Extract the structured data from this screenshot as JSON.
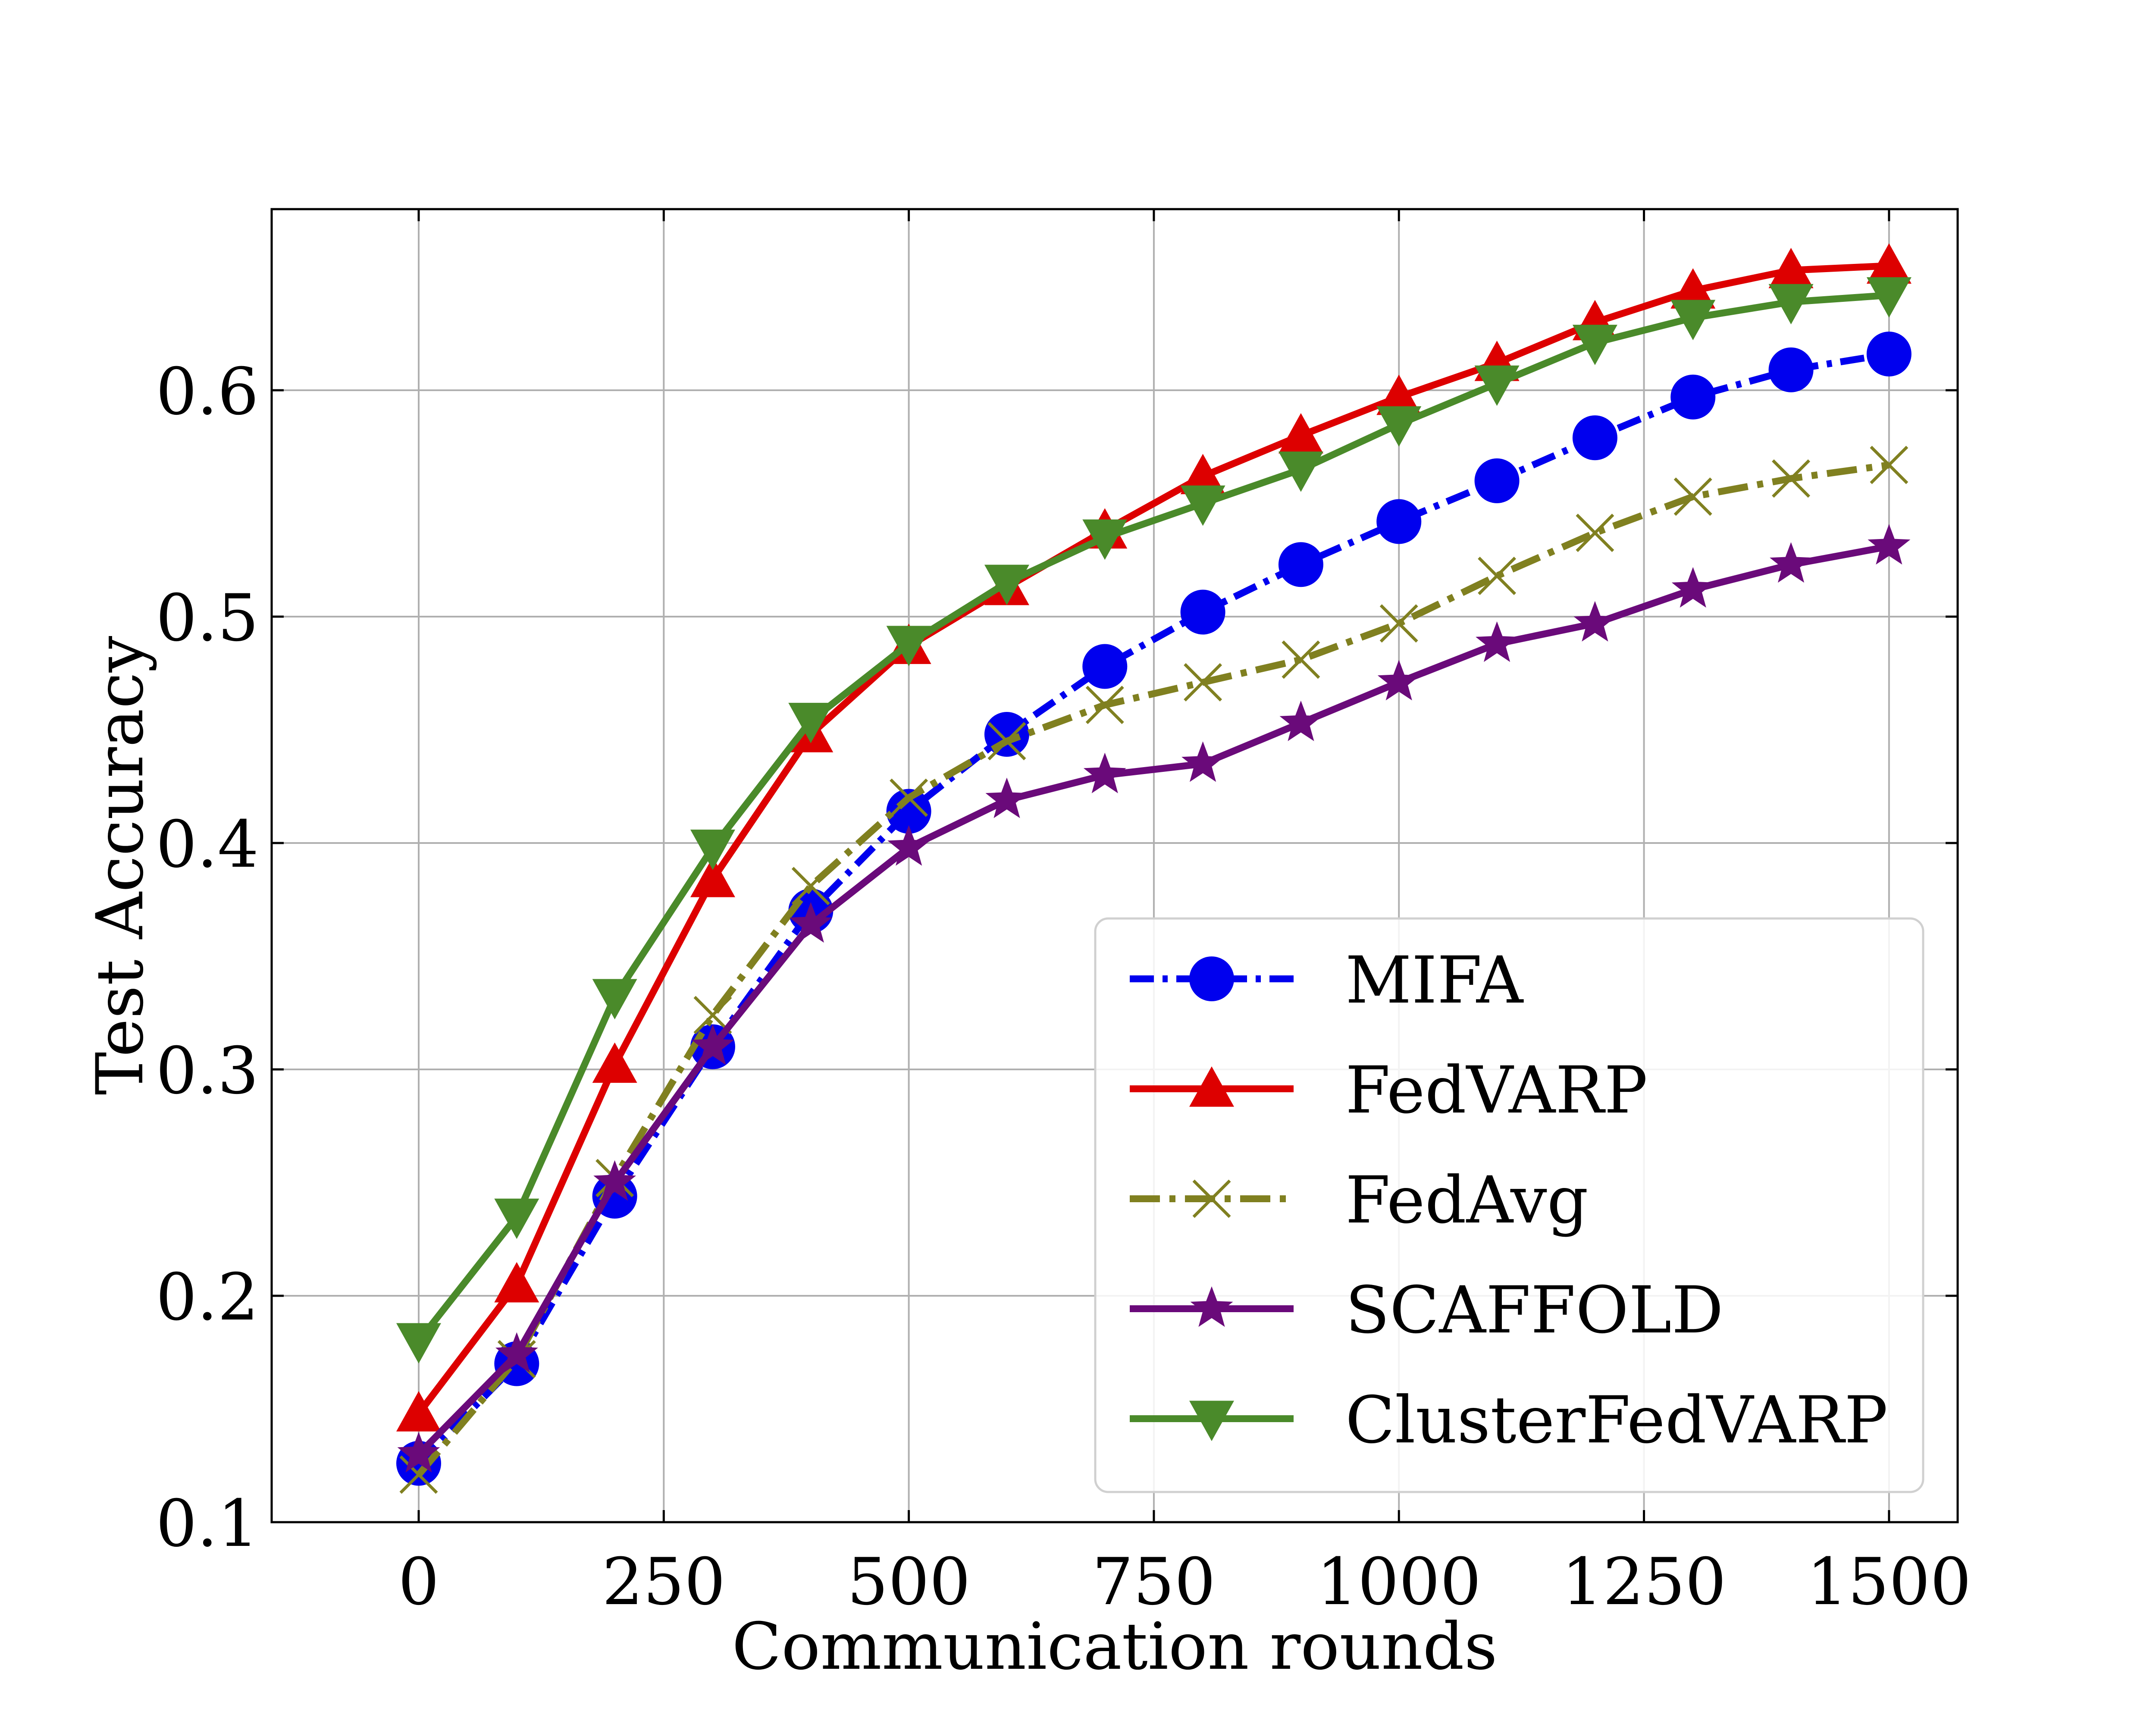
{
  "chart_data": {
    "type": "line",
    "title": "",
    "xlabel": "Communication rounds",
    "ylabel": "Test Accuracy",
    "xlim": [
      -150,
      1570
    ],
    "ylim": [
      0.1,
      0.68
    ],
    "xticks": [
      0,
      250,
      500,
      750,
      1000,
      1250,
      1500
    ],
    "xtick_labels": [
      "0",
      "250",
      "500",
      "750",
      "1000",
      "1250",
      "1500"
    ],
    "yticks": [
      0.1,
      0.2,
      0.3,
      0.4,
      0.5,
      0.6
    ],
    "ytick_labels": [
      "0.1",
      "0.2",
      "0.3",
      "0.4",
      "0.5",
      "0.6"
    ],
    "grid": true,
    "legend_position": "lower-right",
    "x": [
      0,
      100,
      200,
      300,
      400,
      500,
      600,
      700,
      800,
      900,
      1000,
      1100,
      1200,
      1300,
      1400,
      1500
    ],
    "series": [
      {
        "name": "MIFA",
        "color": "#0000ee",
        "line_style": "dashdot",
        "marker": "circle",
        "values": [
          0.126,
          0.17,
          0.244,
          0.31,
          0.37,
          0.414,
          0.448,
          0.478,
          0.502,
          0.523,
          0.542,
          0.56,
          0.579,
          0.597,
          0.609,
          0.616
        ]
      },
      {
        "name": "FedVARP",
        "color": "#dd0000",
        "line_style": "solid",
        "marker": "triangle-up",
        "values": [
          0.148,
          0.205,
          0.302,
          0.384,
          0.448,
          0.487,
          0.513,
          0.538,
          0.562,
          0.58,
          0.597,
          0.612,
          0.63,
          0.644,
          0.653,
          0.655
        ]
      },
      {
        "name": "FedAvg",
        "color": "#808020",
        "line_style": "dashdot-long",
        "marker": "x",
        "values": [
          0.121,
          0.172,
          0.252,
          0.324,
          0.381,
          0.42,
          0.445,
          0.461,
          0.471,
          0.481,
          0.497,
          0.518,
          0.537,
          0.553,
          0.561,
          0.567
        ]
      },
      {
        "name": "SCAFFOLD",
        "color": "#6a0a7a",
        "line_style": "solid",
        "marker": "star",
        "values": [
          0.13,
          0.174,
          0.25,
          0.31,
          0.364,
          0.398,
          0.419,
          0.43,
          0.435,
          0.453,
          0.471,
          0.488,
          0.497,
          0.512,
          0.523,
          0.531
        ]
      },
      {
        "name": "ClusterFedVARP",
        "color": "#4a8a2a",
        "line_style": "solid",
        "marker": "triangle-down",
        "values": [
          0.18,
          0.235,
          0.332,
          0.398,
          0.454,
          0.488,
          0.515,
          0.535,
          0.55,
          0.565,
          0.585,
          0.603,
          0.621,
          0.632,
          0.639,
          0.642
        ]
      }
    ]
  }
}
